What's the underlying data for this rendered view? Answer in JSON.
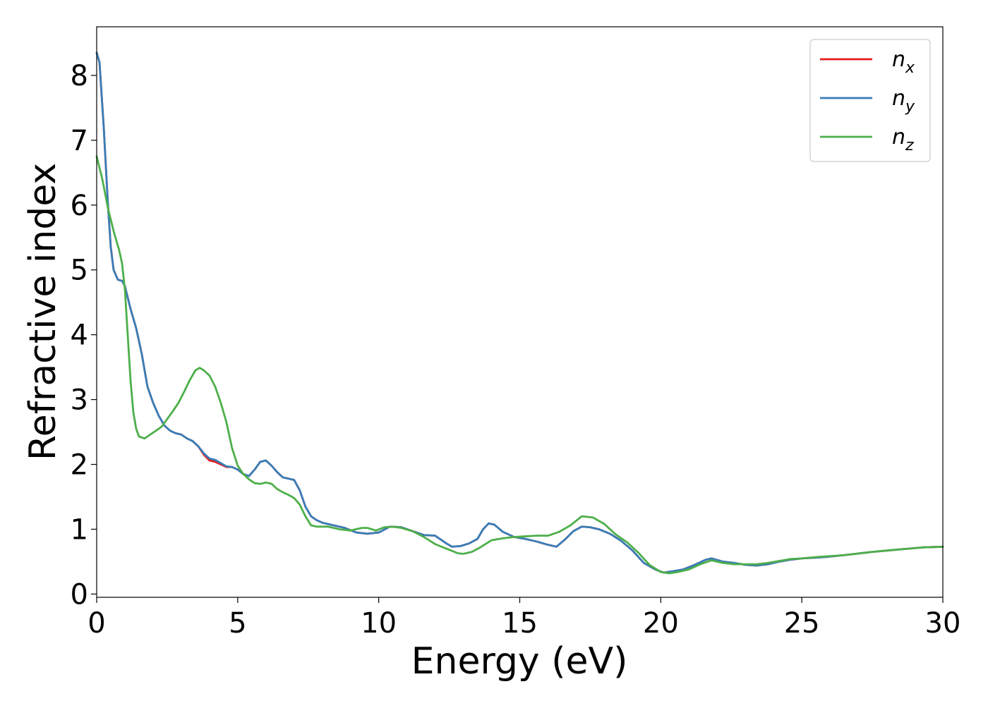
{
  "chart_data": {
    "type": "line",
    "title": "",
    "xlabel": "Energy (eV)",
    "ylabel": "Refractive index",
    "xlim": [
      0,
      30
    ],
    "ylim": [
      -0.05,
      8.75
    ],
    "xticks": [
      0,
      5,
      10,
      15,
      20,
      25,
      30
    ],
    "yticks": [
      0,
      1,
      2,
      3,
      4,
      5,
      6,
      7,
      8
    ],
    "grid": false,
    "legend": {
      "position": "top-right",
      "entries": [
        {
          "base": "n",
          "sub": "x",
          "color": "#e41a1c"
        },
        {
          "base": "n",
          "sub": "y",
          "color": "#377eb8"
        },
        {
          "base": "n",
          "sub": "z",
          "color": "#4daf4a"
        }
      ]
    },
    "series": [
      {
        "name": "n_x",
        "color": "#e41a1c",
        "points": [
          [
            0,
            8.35
          ],
          [
            0.1,
            8.2
          ],
          [
            0.25,
            7.2
          ],
          [
            0.4,
            6.0
          ],
          [
            0.5,
            5.35
          ],
          [
            0.6,
            5.0
          ],
          [
            0.75,
            4.85
          ],
          [
            0.9,
            4.83
          ],
          [
            1.0,
            4.75
          ],
          [
            1.2,
            4.4
          ],
          [
            1.4,
            4.1
          ],
          [
            1.6,
            3.7
          ],
          [
            1.8,
            3.2
          ],
          [
            2.0,
            2.95
          ],
          [
            2.2,
            2.75
          ],
          [
            2.4,
            2.6
          ],
          [
            2.6,
            2.52
          ],
          [
            2.8,
            2.48
          ],
          [
            3.0,
            2.46
          ],
          [
            3.2,
            2.4
          ],
          [
            3.4,
            2.36
          ],
          [
            3.6,
            2.28
          ],
          [
            3.8,
            2.15
          ],
          [
            4.0,
            2.06
          ],
          [
            4.2,
            2.04
          ],
          [
            4.4,
            2.0
          ],
          [
            4.6,
            1.96
          ],
          [
            4.8,
            1.96
          ],
          [
            5.0,
            1.92
          ],
          [
            5.2,
            1.85
          ],
          [
            5.4,
            1.82
          ],
          [
            5.6,
            1.92
          ],
          [
            5.8,
            2.04
          ],
          [
            6.0,
            2.06
          ],
          [
            6.2,
            1.98
          ],
          [
            6.4,
            1.88
          ],
          [
            6.6,
            1.8
          ],
          [
            6.8,
            1.78
          ],
          [
            7.0,
            1.76
          ],
          [
            7.2,
            1.6
          ],
          [
            7.4,
            1.35
          ],
          [
            7.6,
            1.2
          ],
          [
            7.8,
            1.14
          ],
          [
            8.0,
            1.1
          ],
          [
            8.4,
            1.06
          ],
          [
            8.8,
            1.02
          ],
          [
            9.2,
            0.95
          ],
          [
            9.6,
            0.93
          ],
          [
            10.0,
            0.95
          ],
          [
            10.4,
            1.04
          ],
          [
            10.8,
            1.03
          ],
          [
            11.2,
            0.97
          ],
          [
            11.6,
            0.91
          ],
          [
            12.0,
            0.9
          ],
          [
            12.4,
            0.78
          ],
          [
            12.6,
            0.73
          ],
          [
            12.9,
            0.74
          ],
          [
            13.2,
            0.78
          ],
          [
            13.5,
            0.85
          ],
          [
            13.7,
            1.0
          ],
          [
            13.9,
            1.09
          ],
          [
            14.1,
            1.07
          ],
          [
            14.4,
            0.96
          ],
          [
            14.8,
            0.88
          ],
          [
            15.2,
            0.85
          ],
          [
            15.6,
            0.81
          ],
          [
            16.0,
            0.76
          ],
          [
            16.3,
            0.73
          ],
          [
            16.6,
            0.84
          ],
          [
            16.9,
            0.97
          ],
          [
            17.2,
            1.04
          ],
          [
            17.5,
            1.03
          ],
          [
            17.8,
            1.0
          ],
          [
            18.2,
            0.93
          ],
          [
            18.6,
            0.82
          ],
          [
            19.0,
            0.67
          ],
          [
            19.4,
            0.48
          ],
          [
            19.8,
            0.38
          ],
          [
            20.1,
            0.33
          ],
          [
            20.4,
            0.35
          ],
          [
            20.8,
            0.38
          ],
          [
            21.2,
            0.45
          ],
          [
            21.6,
            0.53
          ],
          [
            21.8,
            0.55
          ],
          [
            22.2,
            0.5
          ],
          [
            22.6,
            0.48
          ],
          [
            23.0,
            0.45
          ],
          [
            23.4,
            0.44
          ],
          [
            23.8,
            0.46
          ],
          [
            24.2,
            0.5
          ],
          [
            24.6,
            0.53
          ],
          [
            25.0,
            0.55
          ],
          [
            25.4,
            0.56
          ],
          [
            25.8,
            0.57
          ],
          [
            26.5,
            0.6
          ],
          [
            27.5,
            0.65
          ],
          [
            28.5,
            0.69
          ],
          [
            29.3,
            0.72
          ],
          [
            30.0,
            0.73
          ]
        ]
      },
      {
        "name": "n_y",
        "color": "#377eb8",
        "points": [
          [
            0,
            8.35
          ],
          [
            0.1,
            8.2
          ],
          [
            0.25,
            7.2
          ],
          [
            0.4,
            6.0
          ],
          [
            0.5,
            5.35
          ],
          [
            0.6,
            5.0
          ],
          [
            0.75,
            4.85
          ],
          [
            0.9,
            4.83
          ],
          [
            1.0,
            4.75
          ],
          [
            1.2,
            4.4
          ],
          [
            1.4,
            4.1
          ],
          [
            1.6,
            3.7
          ],
          [
            1.8,
            3.2
          ],
          [
            2.0,
            2.95
          ],
          [
            2.2,
            2.75
          ],
          [
            2.4,
            2.6
          ],
          [
            2.6,
            2.52
          ],
          [
            2.8,
            2.48
          ],
          [
            3.0,
            2.46
          ],
          [
            3.2,
            2.4
          ],
          [
            3.4,
            2.36
          ],
          [
            3.6,
            2.28
          ],
          [
            3.8,
            2.17
          ],
          [
            4.0,
            2.09
          ],
          [
            4.2,
            2.07
          ],
          [
            4.4,
            2.02
          ],
          [
            4.6,
            1.97
          ],
          [
            4.8,
            1.96
          ],
          [
            5.0,
            1.92
          ],
          [
            5.2,
            1.85
          ],
          [
            5.4,
            1.82
          ],
          [
            5.6,
            1.92
          ],
          [
            5.8,
            2.04
          ],
          [
            6.0,
            2.06
          ],
          [
            6.2,
            1.98
          ],
          [
            6.4,
            1.88
          ],
          [
            6.6,
            1.8
          ],
          [
            6.8,
            1.78
          ],
          [
            7.0,
            1.76
          ],
          [
            7.2,
            1.6
          ],
          [
            7.4,
            1.35
          ],
          [
            7.6,
            1.2
          ],
          [
            7.8,
            1.14
          ],
          [
            8.0,
            1.1
          ],
          [
            8.4,
            1.06
          ],
          [
            8.8,
            1.02
          ],
          [
            9.2,
            0.95
          ],
          [
            9.6,
            0.93
          ],
          [
            10.0,
            0.95
          ],
          [
            10.4,
            1.04
          ],
          [
            10.8,
            1.03
          ],
          [
            11.2,
            0.97
          ],
          [
            11.6,
            0.91
          ],
          [
            12.0,
            0.9
          ],
          [
            12.4,
            0.78
          ],
          [
            12.6,
            0.73
          ],
          [
            12.9,
            0.74
          ],
          [
            13.2,
            0.78
          ],
          [
            13.5,
            0.85
          ],
          [
            13.7,
            1.0
          ],
          [
            13.9,
            1.09
          ],
          [
            14.1,
            1.07
          ],
          [
            14.4,
            0.96
          ],
          [
            14.8,
            0.88
          ],
          [
            15.2,
            0.85
          ],
          [
            15.6,
            0.81
          ],
          [
            16.0,
            0.76
          ],
          [
            16.3,
            0.73
          ],
          [
            16.6,
            0.84
          ],
          [
            16.9,
            0.97
          ],
          [
            17.2,
            1.04
          ],
          [
            17.5,
            1.03
          ],
          [
            17.8,
            1.0
          ],
          [
            18.2,
            0.93
          ],
          [
            18.6,
            0.82
          ],
          [
            19.0,
            0.67
          ],
          [
            19.4,
            0.48
          ],
          [
            19.8,
            0.38
          ],
          [
            20.1,
            0.33
          ],
          [
            20.4,
            0.35
          ],
          [
            20.8,
            0.38
          ],
          [
            21.2,
            0.45
          ],
          [
            21.6,
            0.53
          ],
          [
            21.8,
            0.55
          ],
          [
            22.2,
            0.5
          ],
          [
            22.6,
            0.48
          ],
          [
            23.0,
            0.45
          ],
          [
            23.4,
            0.44
          ],
          [
            23.8,
            0.46
          ],
          [
            24.2,
            0.5
          ],
          [
            24.6,
            0.53
          ],
          [
            25.0,
            0.55
          ],
          [
            25.4,
            0.56
          ],
          [
            25.8,
            0.57
          ],
          [
            26.5,
            0.6
          ],
          [
            27.5,
            0.65
          ],
          [
            28.5,
            0.69
          ],
          [
            29.3,
            0.72
          ],
          [
            30.0,
            0.73
          ]
        ]
      },
      {
        "name": "n_z",
        "color": "#4daf4a",
        "points": [
          [
            0,
            6.75
          ],
          [
            0.2,
            6.4
          ],
          [
            0.4,
            5.95
          ],
          [
            0.6,
            5.6
          ],
          [
            0.8,
            5.3
          ],
          [
            0.9,
            5.1
          ],
          [
            1.0,
            4.7
          ],
          [
            1.1,
            4.0
          ],
          [
            1.2,
            3.3
          ],
          [
            1.3,
            2.8
          ],
          [
            1.4,
            2.55
          ],
          [
            1.5,
            2.43
          ],
          [
            1.7,
            2.4
          ],
          [
            1.9,
            2.46
          ],
          [
            2.1,
            2.52
          ],
          [
            2.3,
            2.58
          ],
          [
            2.5,
            2.7
          ],
          [
            2.7,
            2.82
          ],
          [
            2.9,
            2.95
          ],
          [
            3.1,
            3.12
          ],
          [
            3.3,
            3.3
          ],
          [
            3.5,
            3.45
          ],
          [
            3.65,
            3.49
          ],
          [
            3.8,
            3.45
          ],
          [
            4.0,
            3.37
          ],
          [
            4.2,
            3.2
          ],
          [
            4.4,
            2.95
          ],
          [
            4.6,
            2.65
          ],
          [
            4.8,
            2.25
          ],
          [
            5.0,
            1.98
          ],
          [
            5.2,
            1.85
          ],
          [
            5.4,
            1.77
          ],
          [
            5.6,
            1.71
          ],
          [
            5.8,
            1.7
          ],
          [
            6.0,
            1.72
          ],
          [
            6.2,
            1.7
          ],
          [
            6.4,
            1.62
          ],
          [
            6.6,
            1.57
          ],
          [
            6.8,
            1.53
          ],
          [
            7.0,
            1.48
          ],
          [
            7.2,
            1.38
          ],
          [
            7.4,
            1.2
          ],
          [
            7.6,
            1.06
          ],
          [
            7.8,
            1.04
          ],
          [
            8.2,
            1.04
          ],
          [
            8.6,
            1.0
          ],
          [
            9.0,
            0.98
          ],
          [
            9.4,
            1.02
          ],
          [
            9.6,
            1.02
          ],
          [
            9.9,
            0.98
          ],
          [
            10.2,
            1.03
          ],
          [
            10.5,
            1.04
          ],
          [
            10.8,
            1.02
          ],
          [
            11.2,
            0.97
          ],
          [
            11.6,
            0.88
          ],
          [
            12.0,
            0.77
          ],
          [
            12.4,
            0.7
          ],
          [
            12.8,
            0.63
          ],
          [
            13.0,
            0.62
          ],
          [
            13.3,
            0.65
          ],
          [
            13.6,
            0.72
          ],
          [
            14.0,
            0.83
          ],
          [
            14.4,
            0.86
          ],
          [
            14.8,
            0.88
          ],
          [
            15.2,
            0.89
          ],
          [
            15.6,
            0.9
          ],
          [
            16.0,
            0.9
          ],
          [
            16.4,
            0.96
          ],
          [
            16.8,
            1.06
          ],
          [
            17.2,
            1.2
          ],
          [
            17.6,
            1.18
          ],
          [
            18.0,
            1.08
          ],
          [
            18.4,
            0.92
          ],
          [
            18.8,
            0.8
          ],
          [
            19.2,
            0.64
          ],
          [
            19.6,
            0.45
          ],
          [
            20.0,
            0.34
          ],
          [
            20.3,
            0.32
          ],
          [
            20.6,
            0.34
          ],
          [
            21.0,
            0.38
          ],
          [
            21.4,
            0.46
          ],
          [
            21.8,
            0.52
          ],
          [
            22.2,
            0.48
          ],
          [
            22.6,
            0.46
          ],
          [
            23.0,
            0.46
          ],
          [
            23.4,
            0.46
          ],
          [
            23.8,
            0.48
          ],
          [
            24.2,
            0.51
          ],
          [
            24.6,
            0.54
          ],
          [
            25.0,
            0.55
          ],
          [
            25.5,
            0.57
          ],
          [
            26.5,
            0.6
          ],
          [
            27.5,
            0.65
          ],
          [
            28.5,
            0.69
          ],
          [
            29.3,
            0.72
          ],
          [
            30.0,
            0.73
          ]
        ]
      }
    ]
  }
}
